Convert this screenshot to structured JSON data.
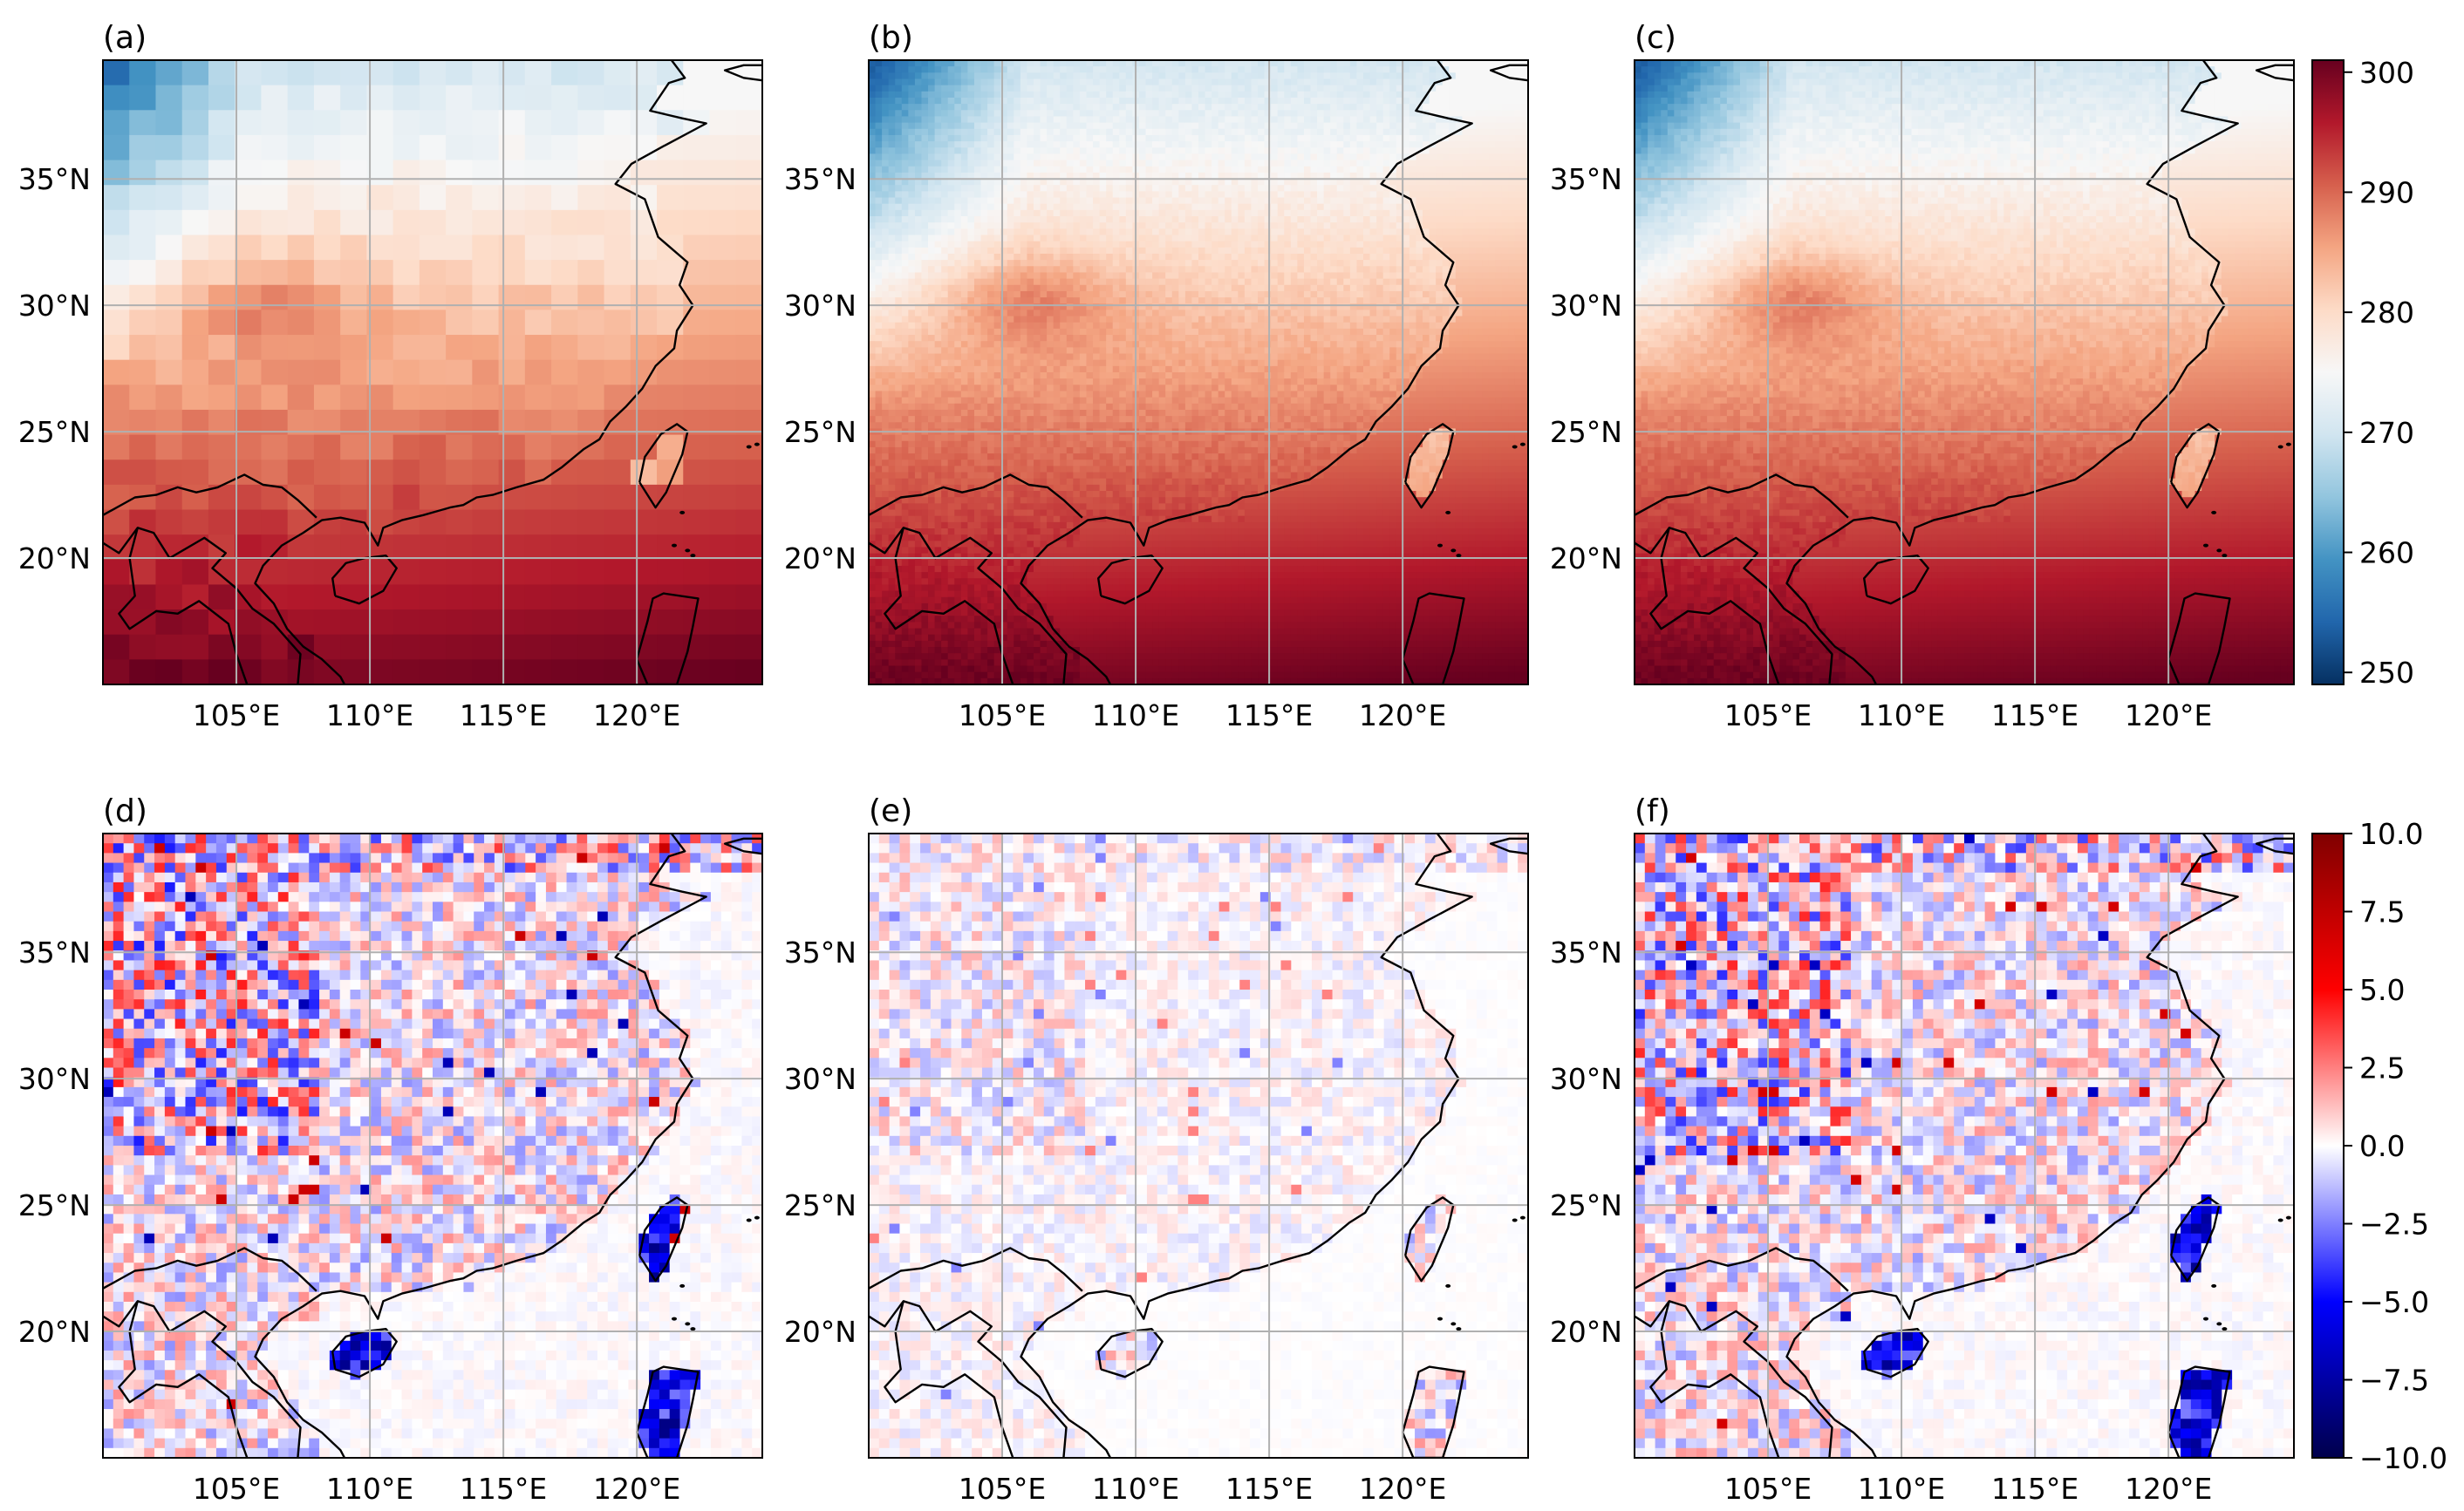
{
  "figure": {
    "panels": [
      {
        "label": "(a)",
        "kind": "temperature",
        "res": "coarse"
      },
      {
        "label": "(b)",
        "kind": "temperature",
        "res": "fine"
      },
      {
        "label": "(c)",
        "kind": "temperature",
        "res": "fine"
      },
      {
        "label": "(d)",
        "kind": "difference",
        "res": "medium",
        "strength": 1.0
      },
      {
        "label": "(e)",
        "kind": "difference",
        "res": "medium",
        "strength": 0.35
      },
      {
        "label": "(f)",
        "kind": "difference",
        "res": "medium",
        "strength": 0.95
      }
    ],
    "lon_ticks": [
      "105°E",
      "110°E",
      "115°E",
      "120°E"
    ],
    "lat_ticks": [
      "35°N",
      "30°N",
      "25°N",
      "20°N"
    ],
    "lon_range": [
      100,
      124.7
    ],
    "lat_range": [
      15,
      39.7
    ],
    "colorbar_top": {
      "min": 249,
      "max": 301,
      "tick_labels": [
        "300",
        "290",
        "280",
        "270",
        "260",
        "250"
      ],
      "tick_values": [
        300,
        290,
        280,
        270,
        260,
        250
      ],
      "colormap": "RdBu_r"
    },
    "colorbar_bottom": {
      "min": -10,
      "max": 10,
      "tick_labels": [
        "10.0",
        "7.5",
        "5.0",
        "2.5",
        "0.0",
        "−2.5",
        "−5.0",
        "−7.5",
        "−10.0"
      ],
      "tick_values": [
        10,
        7.5,
        5,
        2.5,
        0,
        -2.5,
        -5,
        -7.5,
        -10
      ],
      "colormap": "seismic"
    },
    "colors": {
      "grid": "#b0b0b0",
      "coast": "#000000",
      "axes": "#000000"
    }
  }
}
